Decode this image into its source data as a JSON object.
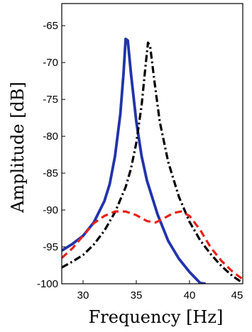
{
  "chart_data": {
    "type": "line",
    "title": "",
    "xlabel": "Frequency [Hz]",
    "ylabel": "Amplitude [dB]",
    "xlim": [
      28,
      45
    ],
    "ylim": [
      -100,
      -62
    ],
    "x_ticks": [
      30,
      35,
      40,
      45
    ],
    "y_ticks": [
      -65,
      -70,
      -75,
      -80,
      -85,
      -90,
      -95,
      -100
    ],
    "grid": false,
    "legend": "none",
    "series": [
      {
        "color": "#2233aa",
        "style": "solid",
        "points": [
          [
            28,
            -95.5
          ],
          [
            29,
            -94.6
          ],
          [
            30,
            -93.5
          ],
          [
            31,
            -91.7
          ],
          [
            32,
            -88.8
          ],
          [
            32.5,
            -86.5
          ],
          [
            33,
            -82.7
          ],
          [
            33.5,
            -77
          ],
          [
            33.8,
            -71.5
          ],
          [
            34,
            -66.8
          ],
          [
            34.2,
            -67
          ],
          [
            34.5,
            -71.5
          ],
          [
            35,
            -78
          ],
          [
            35.5,
            -82.7
          ],
          [
            36,
            -86
          ],
          [
            37,
            -90.6
          ],
          [
            38,
            -94.2
          ],
          [
            39,
            -96.6
          ],
          [
            40,
            -98.4
          ],
          [
            41,
            -99.9
          ],
          [
            41.5,
            -100
          ]
        ]
      },
      {
        "color": "#000000",
        "style": "dashdot",
        "points": [
          [
            28,
            -97.8
          ],
          [
            29,
            -97
          ],
          [
            30,
            -96.1
          ],
          [
            31,
            -94.7
          ],
          [
            32,
            -92.8
          ],
          [
            33,
            -90.3
          ],
          [
            34,
            -86.9
          ],
          [
            34.5,
            -84.4
          ],
          [
            35,
            -80.9
          ],
          [
            35.5,
            -75.8
          ],
          [
            35.9,
            -70
          ],
          [
            36.1,
            -67.3
          ],
          [
            36.3,
            -67.8
          ],
          [
            36.7,
            -72.5
          ],
          [
            37.2,
            -78
          ],
          [
            38,
            -83.5
          ],
          [
            39,
            -88.2
          ],
          [
            40,
            -91.6
          ],
          [
            41,
            -94.1
          ],
          [
            42,
            -96
          ],
          [
            43,
            -97.6
          ],
          [
            44,
            -98.9
          ],
          [
            45,
            -99.9
          ]
        ]
      },
      {
        "color": "#e8201a",
        "style": "dashed",
        "points": [
          [
            28,
            -96.5
          ],
          [
            29,
            -95.2
          ],
          [
            30,
            -93.5
          ],
          [
            31,
            -91.8
          ],
          [
            32,
            -90.8
          ],
          [
            33,
            -90.2
          ],
          [
            34,
            -90.2
          ],
          [
            35,
            -90.7
          ],
          [
            36,
            -91.5
          ],
          [
            36.8,
            -91.7
          ],
          [
            37.5,
            -91.2
          ],
          [
            38.5,
            -90.4
          ],
          [
            39.2,
            -90.2
          ],
          [
            40,
            -90.8
          ],
          [
            41,
            -92.7
          ],
          [
            42,
            -95.1
          ],
          [
            43,
            -96.9
          ],
          [
            44,
            -98.3
          ],
          [
            45,
            -99.4
          ]
        ]
      }
    ]
  }
}
